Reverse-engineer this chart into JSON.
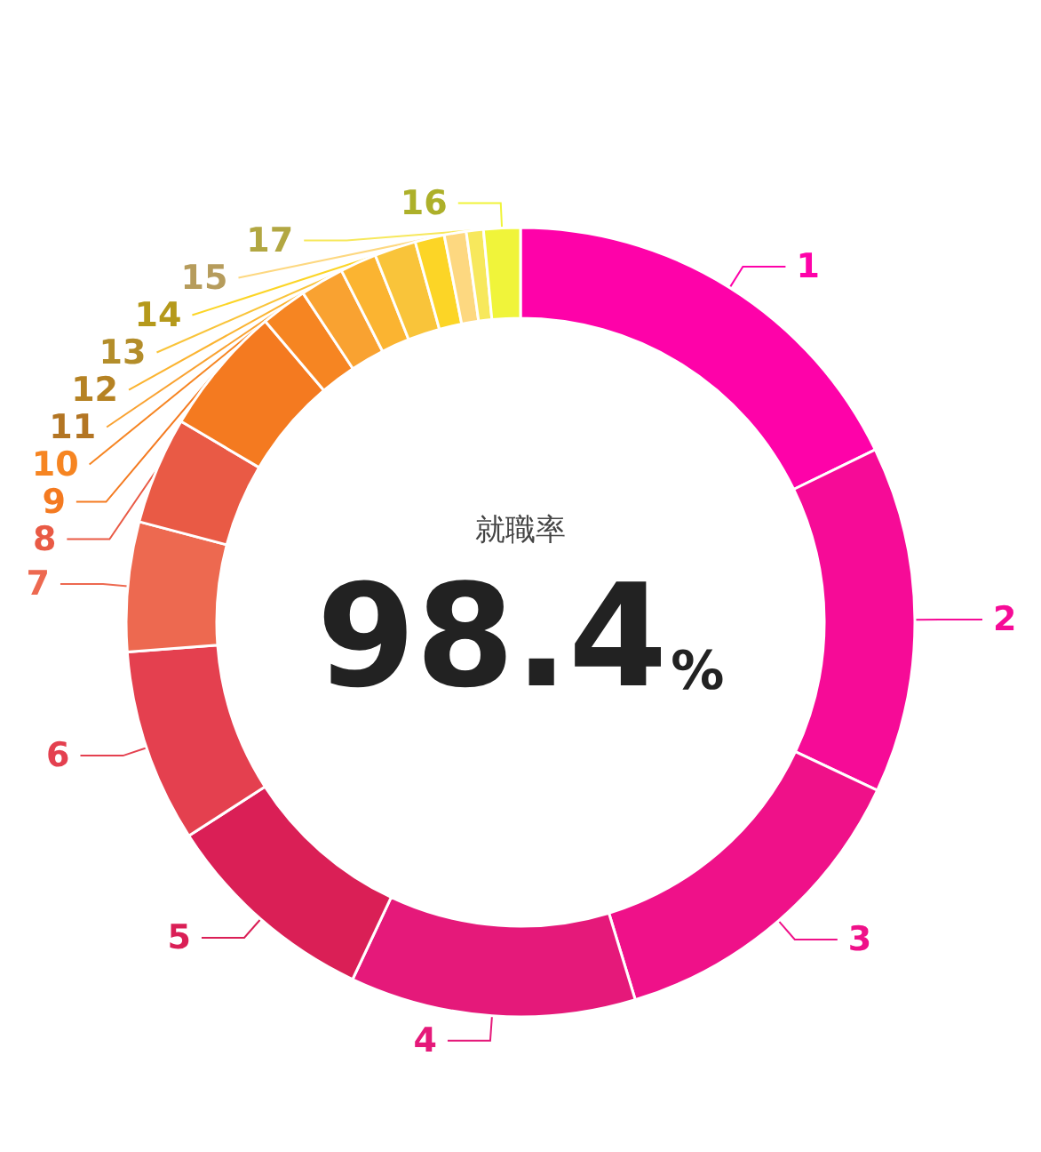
{
  "chart_data": {
    "type": "donut",
    "categories": [
      "1",
      "2",
      "3",
      "4",
      "5",
      "6",
      "7",
      "8",
      "9",
      "10",
      "11",
      "12",
      "13",
      "14",
      "15",
      "17",
      "16"
    ],
    "values": [
      17.8,
      14.2,
      13.3,
      11.7,
      8.9,
      7.9,
      5.3,
      4.4,
      5.3,
      1.9,
      1.8,
      1.5,
      1.7,
      1.2,
      0.9,
      0.7,
      1.5
    ],
    "colors": [
      "#fe02a9",
      "#f60b97",
      "#ef1189",
      "#e5197a",
      "#da1f56",
      "#e4404f",
      "#ed6950",
      "#e95a45",
      "#f47a20",
      "#f68522",
      "#f9a231",
      "#fbb431",
      "#f9c43a",
      "#fcd526",
      "#fdd880",
      "#f7e85c",
      "#f0f43a"
    ],
    "annotations": [
      "就職率",
      "98.4%"
    ],
    "legend": false
  }
}
